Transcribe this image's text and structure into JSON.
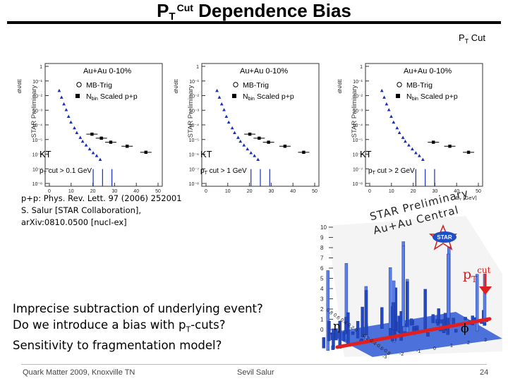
{
  "slide": {
    "title_main": "P",
    "title_sub": "T",
    "title_sup": "Cut",
    "title_rest": " Dependence Bias",
    "pt_cut_label": "P",
    "pt_cut_sub": "T",
    "pt_cut_rest": " Cut",
    "page_number": "24",
    "footer_left": "Quark Matter 2009, Knoxville TN",
    "footer_center": "Sevil Salur"
  },
  "panels": [
    {
      "system": "Au+Au 0-10%",
      "legend_mb": "MB-Trig",
      "legend_nbin": "N",
      "legend_nbin_sub": "bin",
      "legend_nbin_rest": " Scaled p+p",
      "algo": "KT",
      "cut": "p",
      "cut_sub": "T",
      "cut_rest": " cut > 0.1 GeV",
      "star": "STAR Preliminary",
      "ylabel": "dN/dE",
      "xlabel": "E",
      "xlabel_rest": " [GeV]",
      "xticks": [
        "0",
        "10",
        "20",
        "30",
        "40",
        "50"
      ],
      "yticks": [
        "1",
        "10⁻¹",
        "10⁻²",
        "10⁻³",
        "10⁻⁴",
        "10⁻⁵",
        "10⁻⁶",
        "10⁻⁷",
        "10⁻⁸"
      ]
    },
    {
      "system": "Au+Au 0-10%",
      "legend_mb": "MB-Trig",
      "legend_nbin": "N",
      "legend_nbin_sub": "bin",
      "legend_nbin_rest": " Scaled p+p",
      "algo": "KT",
      "cut": "p",
      "cut_sub": "T",
      "cut_rest": " cut > 1 GeV",
      "star": "STAR Preliminary",
      "ylabel": "dN/dE",
      "xlabel": "E",
      "xlabel_rest": " [GeV]",
      "xticks": [
        "0",
        "10",
        "20",
        "30",
        "40",
        "50"
      ],
      "yticks": [
        "1",
        "10⁻¹",
        "10⁻²",
        "10⁻³",
        "10⁻⁴",
        "10⁻⁵",
        "10⁻⁶",
        "10⁻⁷",
        "10⁻⁸"
      ]
    },
    {
      "system": "Au+Au 0-10%",
      "legend_mb": "MB-Trig",
      "legend_nbin": "N",
      "legend_nbin_sub": "bin",
      "legend_nbin_rest": " Scaled p+p",
      "algo": "KT",
      "cut": "p",
      "cut_sub": "T",
      "cut_rest": " cut > 2 GeV",
      "star": "STAR Preliminary",
      "ylabel": "dN/dE",
      "xlabel": "E",
      "xlabel_rest": " [GeV]",
      "xticks": [
        "0",
        "10",
        "20",
        "30",
        "40",
        "50"
      ],
      "yticks": [
        "1",
        "10⁻¹",
        "10⁻²",
        "10⁻³",
        "10⁻⁴",
        "10⁻⁵",
        "10⁻⁶",
        "10⁻⁷",
        "10⁻⁸"
      ]
    }
  ],
  "reference": {
    "line1": "p+p: Phys. Rev. Lett. 97 (2006) 252001",
    "line2": "S. Salur [STAR Collaboration],",
    "line3": "arXiv:0810.0500 [nucl-ex]"
  },
  "question": {
    "line1": "Imprecise subtraction of underlying event?",
    "line2_a": "Do we introduce a bias with p",
    "line2_sub": "T",
    "line2_b": "-cuts?",
    "line3": "Sensitivity to fragmentation model?"
  },
  "lego": {
    "prelim_line1": "STAR Preliminary",
    "prelim_line2": "Au+Au Central",
    "logo": "STAR",
    "pt_label": "p",
    "pt_sub": "T",
    "pt_sup": "cut",
    "eta": "η",
    "phi": "ϕ",
    "zticks": [
      "10",
      "9",
      "8",
      "7",
      "6",
      "5",
      "4",
      "3",
      "2",
      "1",
      "0"
    ],
    "eta_ticks": [
      "0.8",
      "0.6",
      "0.4",
      "0.2",
      "0",
      "-0.2",
      "-0.4",
      "-0.6",
      "-0.8"
    ],
    "phi_ticks": [
      "-3",
      "-2",
      "-1",
      "0",
      "1",
      "2",
      "3"
    ]
  },
  "colors": {
    "accent_red": "#d61a1a",
    "lego_blue": "#1f4fc8",
    "marker_blue": "#1a2fb8"
  }
}
